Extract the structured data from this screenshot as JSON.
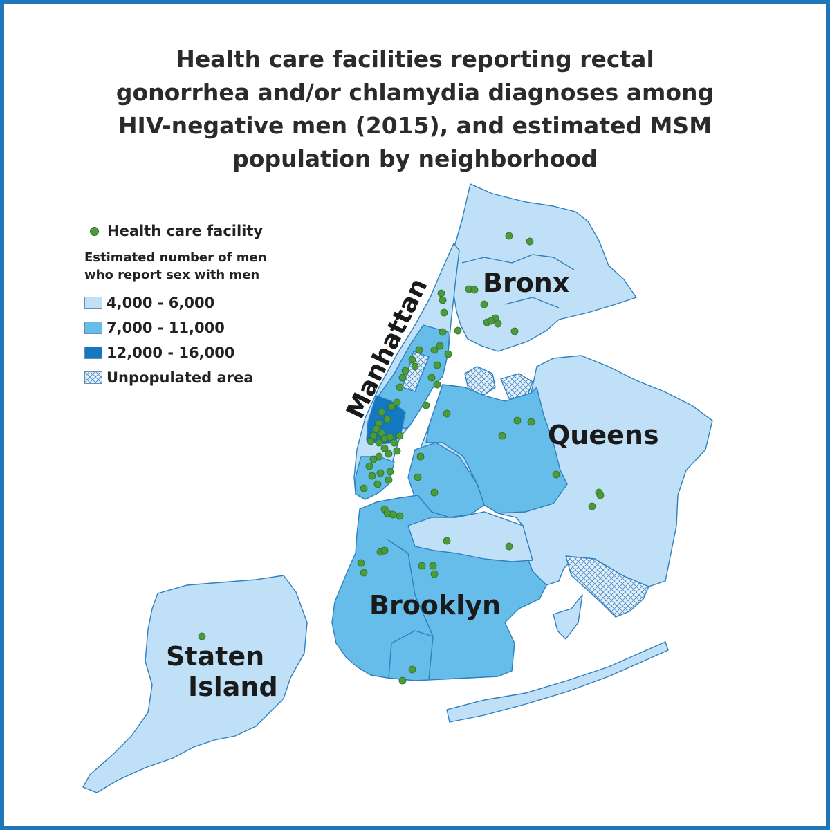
{
  "title_lines": [
    "Health care facilities reporting rectal",
    "gonorrhea and/or chlamydia diagnoses among",
    "HIV-negative men (2015), and estimated MSM",
    "population by neighborhood"
  ],
  "legend": {
    "facility_label": "Health care facility",
    "subtitle_lines": [
      "Estimated number of men",
      "who report sex with men"
    ],
    "classes": [
      {
        "label": "4,000 - 6,000",
        "color": "#bfe0f7"
      },
      {
        "label": "7,000 - 11,000",
        "color": "#66bdea"
      },
      {
        "label": "12,000 - 16,000",
        "color": "#1478c0"
      },
      {
        "label": "Unpopulated area",
        "color": "hatch"
      }
    ]
  },
  "boroughs": {
    "manhattan": "Manhattan",
    "bronx": "Bronx",
    "queens": "Queens",
    "brooklyn": "Brooklyn",
    "staten_island_line1": "Staten",
    "staten_island_line2": "Island"
  },
  "colors": {
    "border": "#1f76b8",
    "facility_dot": "#4b9a3c",
    "outline": "#2e7fbf"
  }
}
